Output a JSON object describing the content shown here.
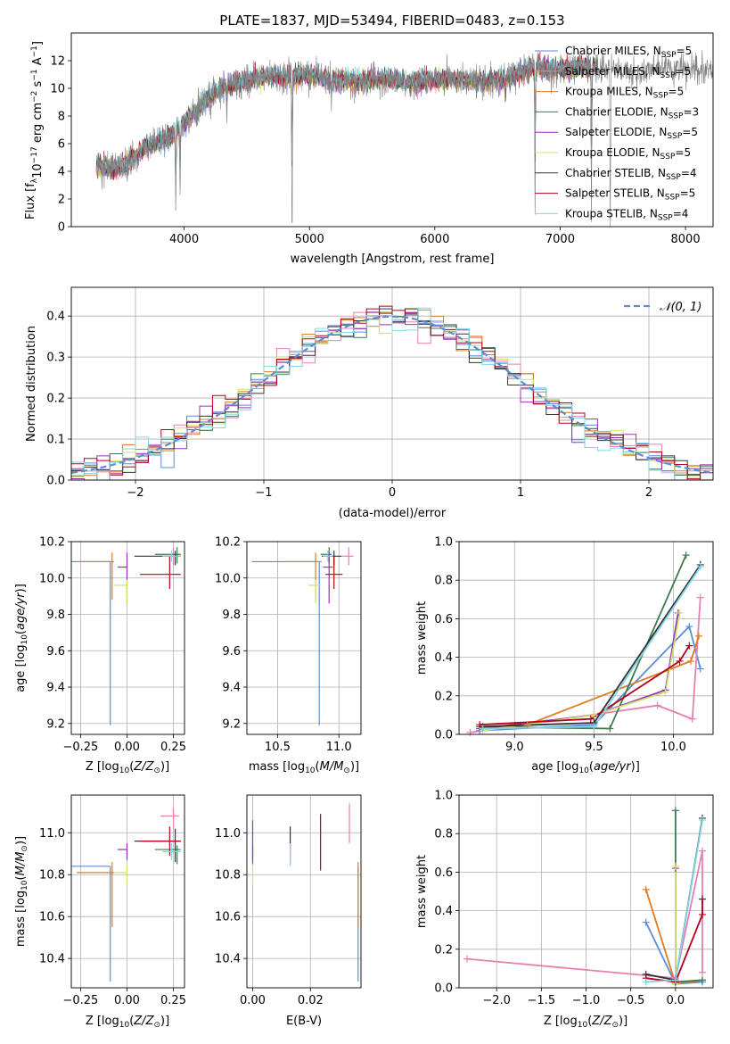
{
  "title": "PLATE=1837, MJD=53494, FIBERID=0483, z=0.153",
  "colors": {
    "chabrier_miles": "#5b8bd9",
    "salpeter_miles": "#e87fb0",
    "kroupa_miles": "#e07b1f",
    "chabrier_elodie": "#3f7a4f",
    "salpeter_elodie": "#9b2fb8",
    "kroupa_elodie": "#cfe36b",
    "chabrier_stelib": "#333333",
    "salpeter_stelib": "#b3001b",
    "kroupa_stelib": "#7fd6e6",
    "data_spectrum": "#808080",
    "normal_curve": "#5b8bd9",
    "grid": "#b0b0b0"
  },
  "chart_data": [
    {
      "type": "line",
      "xlabel": "wavelength [Angstrom, rest frame]",
      "ylabel_parts": [
        "Flux [f",
        "λ",
        "10",
        "−17",
        " erg cm",
        "−2",
        " s",
        "−1",
        " A",
        "−1",
        "]"
      ],
      "xlim": [
        3100,
        8220
      ],
      "ylim": [
        0,
        14
      ],
      "xticks": [
        4000,
        5000,
        6000,
        7000,
        8000
      ],
      "yticks": [
        0,
        2,
        4,
        6,
        8,
        10,
        12
      ],
      "grid": false,
      "legend_position": "upper right",
      "legend": [
        {
          "name": "Chabrier MILES",
          "nssp": "5",
          "color_key": "chabrier_miles"
        },
        {
          "name": "Salpeter MILES",
          "nssp": "5",
          "color_key": "salpeter_miles"
        },
        {
          "name": "Kroupa MILES",
          "nssp": "5",
          "color_key": "kroupa_miles"
        },
        {
          "name": "Chabrier ELODIE",
          "nssp": "3",
          "color_key": "chabrier_elodie"
        },
        {
          "name": "Salpeter ELODIE",
          "nssp": "5",
          "color_key": "salpeter_elodie"
        },
        {
          "name": "Kroupa ELODIE",
          "nssp": "5",
          "color_key": "kroupa_elodie"
        },
        {
          "name": "Chabrier STELIB",
          "nssp": "4",
          "color_key": "chabrier_stelib"
        },
        {
          "name": "Salpeter STELIB",
          "nssp": "5",
          "color_key": "salpeter_stelib"
        },
        {
          "name": "Kroupa STELIB",
          "nssp": "4",
          "color_key": "kroupa_stelib"
        }
      ],
      "continuum": {
        "x": [
          3300,
          3400,
          3500,
          3600,
          3700,
          3800,
          3900,
          4000,
          4100,
          4200,
          4300,
          4400,
          4500,
          4600,
          4800,
          5000,
          5200,
          5400,
          5600,
          5800,
          6000,
          6200,
          6400,
          6600,
          6800,
          7000,
          7200,
          7400,
          7600,
          7800,
          8000,
          8180
        ],
        "y": [
          4.5,
          4.2,
          4.3,
          5.0,
          5.8,
          6.2,
          6.5,
          7.5,
          8.5,
          9.3,
          10.0,
          10.3,
          10.5,
          10.9,
          10.8,
          11.0,
          10.6,
          10.5,
          10.7,
          10.4,
          10.6,
          10.7,
          10.5,
          10.8,
          11.6,
          11.3,
          11.6,
          11.5,
          11.0,
          11.5,
          11.3,
          11.2
        ]
      },
      "absorption_lines": [
        {
          "x": 3933,
          "depth": 6.0
        },
        {
          "x": 3968,
          "depth": 5.0
        },
        {
          "x": 4102,
          "depth": 1.5
        },
        {
          "x": 4340,
          "depth": 1.5
        },
        {
          "x": 4861,
          "depth": 10.5
        },
        {
          "x": 5175,
          "depth": 1.5
        },
        {
          "x": 6563,
          "depth": 2.0
        },
        {
          "x": 6800,
          "depth": 11.0
        },
        {
          "x": 7250,
          "depth": 11.5
        },
        {
          "x": 7400,
          "depth": 11.5
        }
      ],
      "model_extent": [
        3300,
        7300
      ]
    },
    {
      "type": "line",
      "xlabel": "(data-model)/error",
      "ylabel": "Normed distribution",
      "xlim": [
        -2.5,
        2.5
      ],
      "ylim": [
        0,
        0.47
      ],
      "xticks": [
        -2,
        -1,
        0,
        1,
        2
      ],
      "yticks": [
        0.0,
        0.1,
        0.2,
        0.3,
        0.4
      ],
      "grid": true,
      "legend_position": "upper right",
      "normal_legend": "𝒩(0, 1)",
      "bin_width": 0.1,
      "n_histograms": 9
    },
    {
      "type": "scatter",
      "xlabel": "Z [log10(Z/Z⊙)]",
      "ylabel": "age [log10(age/yr)]",
      "xlim": [
        -0.3,
        0.31
      ],
      "ylim": [
        9.14,
        10.2
      ],
      "xticks": [
        -0.25,
        0.0,
        0.25
      ],
      "yticks": [
        9.2,
        9.4,
        9.6,
        9.8,
        10.0,
        10.2
      ],
      "grid": true,
      "points": [
        {
          "key": "chabrier_miles",
          "x": -0.09,
          "xerr": [
            0.34,
            0.0
          ],
          "y": 10.09,
          "yerr": [
            0.9,
            0.0
          ]
        },
        {
          "key": "salpeter_miles",
          "x": 0.25,
          "xerr": [
            0.07,
            0.03
          ],
          "y": 10.12,
          "yerr": [
            0.05,
            0.05
          ]
        },
        {
          "key": "kroupa_miles",
          "x": -0.08,
          "xerr": [
            0.19,
            0.01
          ],
          "y": 10.09,
          "yerr": [
            0.21,
            0.05
          ]
        },
        {
          "key": "chabrier_elodie",
          "x": 0.27,
          "xerr": [
            0.12,
            0.02
          ],
          "y": 10.13,
          "yerr": [
            0.05,
            0.04
          ]
        },
        {
          "key": "salpeter_elodie",
          "x": 0.0,
          "xerr": [
            0.05,
            0.0
          ],
          "y": 10.06,
          "yerr": [
            0.2,
            0.08
          ]
        },
        {
          "key": "kroupa_elodie",
          "x": 0.0,
          "xerr": [
            0.07,
            0.0
          ],
          "y": 9.96,
          "yerr": [
            0.1,
            0.03
          ]
        },
        {
          "key": "chabrier_stelib",
          "x": 0.26,
          "xerr": [
            0.22,
            0.03
          ],
          "y": 10.12,
          "yerr": [
            0.05,
            0.03
          ]
        },
        {
          "key": "salpeter_stelib",
          "x": 0.23,
          "xerr": [
            0.16,
            0.06
          ],
          "y": 10.02,
          "yerr": [
            0.08,
            0.1
          ]
        },
        {
          "key": "kroupa_stelib",
          "x": 0.24,
          "xerr": [
            0.05,
            0.05
          ],
          "y": 10.12,
          "yerr": [
            0.03,
            0.03
          ]
        }
      ]
    },
    {
      "type": "scatter",
      "xlabel": "mass [log10(M/M⊙)]",
      "ylabel": "",
      "xlim": [
        10.25,
        11.18
      ],
      "ylim": [
        9.14,
        10.2
      ],
      "xticks": [
        10.5,
        11.0
      ],
      "yticks": [
        9.2,
        9.4,
        9.6,
        9.8,
        10.0,
        10.2
      ],
      "grid": true,
      "points": [
        {
          "key": "chabrier_miles",
          "x": 10.84,
          "xerr": [
            0.55,
            0.0
          ],
          "y": 10.09,
          "yerr": [
            0.9,
            0.0
          ]
        },
        {
          "key": "salpeter_miles",
          "x": 11.08,
          "xerr": [
            0.06,
            0.04
          ],
          "y": 10.12,
          "yerr": [
            0.05,
            0.05
          ]
        },
        {
          "key": "kroupa_miles",
          "x": 10.81,
          "xerr": [
            0.26,
            0.05
          ],
          "y": 10.09,
          "yerr": [
            0.21,
            0.05
          ]
        },
        {
          "key": "chabrier_elodie",
          "x": 10.92,
          "xerr": [
            0.07,
            0.02
          ],
          "y": 10.13,
          "yerr": [
            0.05,
            0.04
          ]
        },
        {
          "key": "salpeter_elodie",
          "x": 10.92,
          "xerr": [
            0.05,
            0.03
          ],
          "y": 10.06,
          "yerr": [
            0.2,
            0.08
          ]
        },
        {
          "key": "kroupa_elodie",
          "x": 10.81,
          "xerr": [
            0.06,
            0.04
          ],
          "y": 9.96,
          "yerr": [
            0.1,
            0.03
          ]
        },
        {
          "key": "chabrier_stelib",
          "x": 10.96,
          "xerr": [
            0.1,
            0.06
          ],
          "y": 10.12,
          "yerr": [
            0.05,
            0.03
          ]
        },
        {
          "key": "salpeter_stelib",
          "x": 10.96,
          "xerr": [
            0.07,
            0.07
          ],
          "y": 10.02,
          "yerr": [
            0.08,
            0.1
          ]
        },
        {
          "key": "kroupa_stelib",
          "x": 10.91,
          "xerr": [
            0.04,
            0.04
          ],
          "y": 10.12,
          "yerr": [
            0.03,
            0.03
          ]
        }
      ]
    },
    {
      "type": "line",
      "xlabel": "age [log10(age/yr)]",
      "ylabel": "mass weight",
      "xlim": [
        8.65,
        10.25
      ],
      "ylim": [
        0,
        1.0
      ],
      "xticks": [
        9.0,
        9.5,
        10.0
      ],
      "yticks": [
        0.0,
        0.2,
        0.4,
        0.6,
        0.8,
        1.0
      ],
      "grid": true,
      "series": [
        {
          "key": "chabrier_miles",
          "x": [
            8.78,
            9.5,
            10.1,
            10.17
          ],
          "y": [
            0.02,
            0.05,
            0.56,
            0.34
          ]
        },
        {
          "key": "salpeter_miles",
          "x": [
            8.72,
            9.9,
            10.12,
            10.17
          ],
          "y": [
            0.01,
            0.15,
            0.08,
            0.71
          ]
        },
        {
          "key": "kroupa_miles",
          "x": [
            8.78,
            9.08,
            10.11,
            10.16
          ],
          "y": [
            0.04,
            0.05,
            0.38,
            0.51
          ]
        },
        {
          "key": "chabrier_elodie",
          "x": [
            8.78,
            9.6,
            10.08
          ],
          "y": [
            0.04,
            0.03,
            0.93
          ]
        },
        {
          "key": "salpeter_elodie",
          "x": [
            8.78,
            9.5,
            9.95,
            10.03
          ],
          "y": [
            0.03,
            0.1,
            0.23,
            0.63
          ]
        },
        {
          "key": "kroupa_elodie",
          "x": [
            8.8,
            9.5,
            9.95,
            10.04
          ],
          "y": [
            0.02,
            0.1,
            0.22,
            0.63
          ]
        },
        {
          "key": "chabrier_stelib",
          "x": [
            8.8,
            9.5,
            10.17
          ],
          "y": [
            0.04,
            0.06,
            0.88
          ]
        },
        {
          "key": "salpeter_stelib",
          "x": [
            8.78,
            9.48,
            10.04,
            10.1
          ],
          "y": [
            0.05,
            0.08,
            0.38,
            0.46
          ]
        },
        {
          "key": "kroupa_stelib",
          "x": [
            8.8,
            9.5,
            10.17
          ],
          "y": [
            0.03,
            0.04,
            0.87
          ]
        }
      ]
    },
    {
      "type": "scatter",
      "xlabel": "Z [log10(Z/Z⊙)]",
      "ylabel": "mass [log10(M/M⊙)]",
      "xlim": [
        -0.3,
        0.31
      ],
      "ylim": [
        10.26,
        11.18
      ],
      "xticks": [
        -0.25,
        0.0,
        0.25
      ],
      "yticks": [
        10.4,
        10.6,
        10.8,
        11.0
      ],
      "grid": true,
      "points": [
        {
          "key": "chabrier_miles",
          "x": -0.09,
          "xerr": [
            0.34,
            0.0
          ],
          "y": 10.84,
          "yerr": [
            0.55,
            0.0
          ]
        },
        {
          "key": "salpeter_miles",
          "x": 0.25,
          "xerr": [
            0.07,
            0.03
          ],
          "y": 11.08,
          "yerr": [
            0.06,
            0.04
          ]
        },
        {
          "key": "kroupa_miles",
          "x": -0.08,
          "xerr": [
            0.19,
            0.01
          ],
          "y": 10.81,
          "yerr": [
            0.26,
            0.05
          ]
        },
        {
          "key": "chabrier_elodie",
          "x": 0.27,
          "xerr": [
            0.12,
            0.02
          ],
          "y": 10.92,
          "yerr": [
            0.07,
            0.02
          ]
        },
        {
          "key": "salpeter_elodie",
          "x": 0.0,
          "xerr": [
            0.05,
            0.0
          ],
          "y": 10.92,
          "yerr": [
            0.05,
            0.03
          ]
        },
        {
          "key": "kroupa_elodie",
          "x": 0.0,
          "xerr": [
            0.07,
            0.0
          ],
          "y": 10.81,
          "yerr": [
            0.06,
            0.04
          ]
        },
        {
          "key": "chabrier_stelib",
          "x": 0.26,
          "xerr": [
            0.22,
            0.03
          ],
          "y": 10.96,
          "yerr": [
            0.1,
            0.06
          ]
        },
        {
          "key": "salpeter_stelib",
          "x": 0.23,
          "xerr": [
            0.16,
            0.06
          ],
          "y": 10.96,
          "yerr": [
            0.07,
            0.07
          ]
        },
        {
          "key": "kroupa_stelib",
          "x": 0.24,
          "xerr": [
            0.05,
            0.05
          ],
          "y": 10.91,
          "yerr": [
            0.04,
            0.04
          ]
        }
      ]
    },
    {
      "type": "scatter",
      "xlabel": "E(B-V)",
      "ylabel": "",
      "xlim": [
        -0.002,
        0.0375
      ],
      "ylim": [
        10.26,
        11.18
      ],
      "xticks": [
        0.0,
        0.02
      ],
      "yticks": [
        10.4,
        10.6,
        10.8,
        11.0
      ],
      "grid": true,
      "points": [
        {
          "key": "chabrier_miles",
          "x": 0.0365,
          "y": 10.84,
          "yerr": [
            0.55,
            0.0
          ]
        },
        {
          "key": "salpeter_miles",
          "x": 0.0335,
          "y": 11.08,
          "yerr": [
            0.13,
            0.06
          ]
        },
        {
          "key": "kroupa_miles",
          "x": 0.0365,
          "y": 10.81,
          "yerr": [
            0.26,
            0.05
          ]
        },
        {
          "key": "chabrier_elodie",
          "x": 0.0,
          "y": 10.92,
          "yerr": [
            0.07,
            0.02
          ]
        },
        {
          "key": "salpeter_elodie",
          "x": 0.0,
          "y": 10.92,
          "yerr": [
            0.05,
            0.14
          ]
        },
        {
          "key": "kroupa_elodie",
          "x": 0.0,
          "y": 10.81,
          "yerr": [
            0.06,
            0.04
          ]
        },
        {
          "key": "chabrier_stelib",
          "x": 0.013,
          "y": 10.96,
          "yerr": [
            0.1,
            0.07
          ]
        },
        {
          "key": "salpeter_stelib",
          "x": 0.0235,
          "y": 10.96,
          "yerr": [
            0.14,
            0.13
          ]
        },
        {
          "key": "kroupa_stelib",
          "x": 0.013,
          "y": 10.91,
          "yerr": [
            0.07,
            0.04
          ]
        }
      ]
    },
    {
      "type": "line",
      "xlabel": "Z [log10(Z/Z⊙)]",
      "ylabel": "mass weight",
      "xlim": [
        -2.42,
        0.42
      ],
      "ylim": [
        0,
        1.0
      ],
      "xticks": [
        -2.0,
        -1.5,
        -1.0,
        -0.5,
        0.0
      ],
      "yticks": [
        0.0,
        0.2,
        0.4,
        0.6,
        0.8,
        1.0
      ],
      "grid": true,
      "series": [
        {
          "key": "chabrier_miles",
          "x": [
            -0.33,
            0.0,
            0.3
          ],
          "y": [
            0.34,
            0.02,
            0.03
          ]
        },
        {
          "key": "salpeter_miles",
          "x": [
            -2.33,
            0.0,
            0.3,
            0.3
          ],
          "y": [
            0.15,
            0.05,
            0.71,
            0.08
          ]
        },
        {
          "key": "kroupa_miles",
          "x": [
            -0.33,
            0.0,
            0.3
          ],
          "y": [
            0.51,
            0.02,
            0.04
          ]
        },
        {
          "key": "chabrier_elodie",
          "x": [
            0.0,
            0.0,
            0.3
          ],
          "y": [
            0.92,
            0.03,
            0.04
          ]
        },
        {
          "key": "salpeter_elodie",
          "x": [
            0.0,
            0.0
          ],
          "y": [
            0.62,
            0.04
          ]
        },
        {
          "key": "kroupa_elodie",
          "x": [
            0.0,
            0.0
          ],
          "y": [
            0.63,
            0.02
          ]
        },
        {
          "key": "chabrier_stelib",
          "x": [
            -0.33,
            0.0,
            0.3
          ],
          "y": [
            0.07,
            0.04,
            0.88
          ]
        },
        {
          "key": "salpeter_stelib",
          "x": [
            -0.33,
            0.0,
            0.3,
            0.3
          ],
          "y": [
            0.05,
            0.03,
            0.38,
            0.46
          ]
        },
        {
          "key": "kroupa_stelib",
          "x": [
            -0.33,
            0.0,
            0.3
          ],
          "y": [
            0.03,
            0.04,
            0.87
          ]
        }
      ]
    }
  ]
}
